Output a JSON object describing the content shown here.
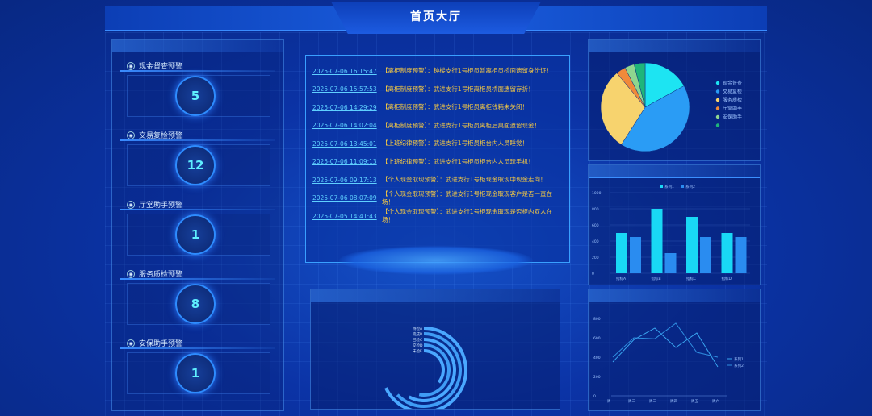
{
  "header": {
    "title": "首页大厅"
  },
  "cards": [
    {
      "label": "现金督查预警",
      "value": "5",
      "icon": "cash-icon"
    },
    {
      "label": "交易复检预警",
      "value": "12",
      "icon": "transaction-icon"
    },
    {
      "label": "厅堂助手预警",
      "value": "1",
      "icon": "lobby-icon"
    },
    {
      "label": "服务质检预警",
      "value": "8",
      "icon": "service-icon"
    },
    {
      "label": "安保助手预警",
      "value": "1",
      "icon": "security-icon"
    }
  ],
  "alerts": [
    {
      "time": "2025-07-06 16:15:47",
      "msg": "【离柜制度预警】：钟楼支行1号柜员暂离柜员桥面遗留身份证！"
    },
    {
      "time": "2025-07-06 15:57:53",
      "msg": "【离柜制度预警】：武进支行1号柜离柜员桥面遗留存折！"
    },
    {
      "time": "2025-07-06 14:29:29",
      "msg": "【离柜制度预警】：武进支行1号柜员离柜钱箱未关闭！"
    },
    {
      "time": "2025-07-06 14:02:04",
      "msg": "【离柜制度预警】：武进支行1号柜员离柜后桌面遗留现金！"
    },
    {
      "time": "2025-07-06 13:45:01",
      "msg": "【上班纪律预警】：武进支行1号柜员柜台内人员睡觉！"
    },
    {
      "time": "2025-07-06 11:09:13",
      "msg": "【上班纪律预警】：武进支行1号柜员柜台内人员玩手机！"
    },
    {
      "time": "2025-07-06 09:17:13",
      "msg": "【个人现金取现预警】：武进支行1号柜现金取现中现金走向！"
    },
    {
      "time": "2025-07-06 08:07:09",
      "msg": "【个人现金取现预警】：武进支行1号柜现金取现客户是否一直在场！"
    },
    {
      "time": "2025-07-05 14:41:43",
      "msg": "【个人现金取现预警】：武进支行1号柜现金取现是否柜内双人在场！"
    }
  ],
  "chart_data": [
    {
      "type": "pie",
      "legend_position": "right",
      "categories": [
        "现金督查",
        "交易复检",
        "服务质检",
        "厅堂助手",
        "安保助手",
        ""
      ],
      "values": [
        17,
        42,
        30,
        3.5,
        3.5,
        4
      ],
      "colors": [
        "#1de4f2",
        "#2a9cf5",
        "#f7d36e",
        "#f08a3a",
        "#8fd68f",
        "#1fb57a"
      ]
    },
    {
      "type": "bar",
      "categories": [
        "指标A",
        "指标B",
        "指标C",
        "指标D"
      ],
      "series": [
        {
          "name": "系列1",
          "values": [
            500,
            800,
            700,
            500
          ],
          "color": "#19d8f5"
        },
        {
          "name": "系列2",
          "values": [
            450,
            250,
            450,
            450
          ],
          "color": "#2a8cf0"
        }
      ],
      "ylim": [
        0,
        1000
      ],
      "yticks": [
        0,
        200,
        400,
        600,
        800,
        1000
      ],
      "legend_position": "top"
    },
    {
      "type": "line",
      "categories": [
        "周一",
        "周二",
        "周三",
        "周四",
        "周五",
        "周六"
      ],
      "series": [
        {
          "name": "系列1",
          "values": [
            350,
            580,
            700,
            500,
            650,
            300
          ],
          "color": "#3aa6f0"
        },
        {
          "name": "系列2",
          "values": [
            400,
            600,
            590,
            750,
            450,
            400
          ],
          "color": "#2f8ee0"
        }
      ],
      "ylim": [
        0,
        800
      ],
      "yticks": [
        0,
        200,
        400,
        600,
        800
      ],
      "legend_position": "right"
    },
    {
      "type": "radial-bar",
      "categories": [
        "待检A",
        "完成B",
        "已检C",
        "交检D",
        "未检E"
      ],
      "values": [
        0.68,
        0.63,
        0.58,
        0.53,
        0.36
      ],
      "color": "#3a8cff"
    }
  ]
}
